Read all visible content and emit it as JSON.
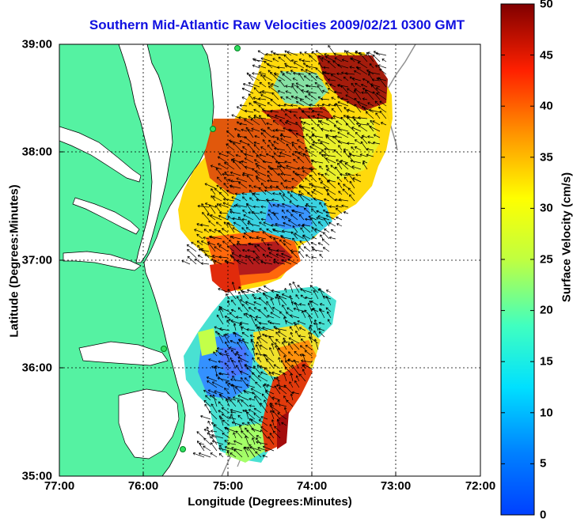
{
  "title": "Southern Mid-Atlantic Raw Velocities 2009/02/21 0300 GMT",
  "xlabel": "Longitude (Degrees:Minutes)",
  "ylabel": "Latitude (Degrees:Minutes)",
  "colorbar_label": "Surface Velocity (cm/s)",
  "x_ticks": [
    "77:00",
    "76:00",
    "75:00",
    "74:00",
    "73:00",
    "72:00"
  ],
  "y_ticks": [
    "39:00",
    "38:00",
    "37:00",
    "36:00",
    "35:00"
  ],
  "colorbar_ticks": [
    "50",
    "45",
    "40",
    "35",
    "30",
    "25",
    "20",
    "15",
    "10",
    "5",
    "0"
  ],
  "colors": {
    "land": "#55f2a2",
    "title": "#1010e0",
    "coast": "#000000",
    "bathymetry": "#909090"
  },
  "map": {
    "lon_range": [
      -77.0,
      -72.0
    ],
    "lat_range": [
      35.0,
      39.0
    ],
    "velocity_range_cm_s": [
      0,
      50
    ],
    "grid": "dotted",
    "colormap": "jet"
  }
}
